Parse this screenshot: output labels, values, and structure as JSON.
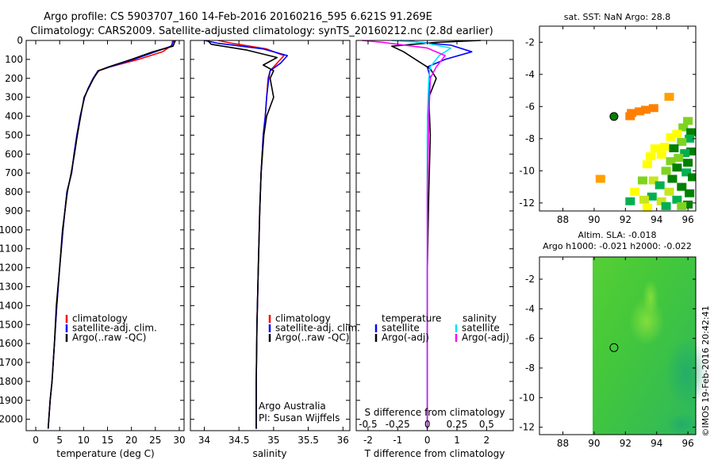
{
  "header": {
    "title_line1": "Argo profile: CS 5903707_160 14-Feb-2016 20160216_595 6.621S 91.269E",
    "title_line2": "Climatology: CARS2009. Satellite-adjusted climatology: synTS_20160212.nc (2.8d earlier)"
  },
  "footer": {
    "stamp": "©IMOS 19-Feb-2016 20:42:41"
  },
  "colors": {
    "climatology": "#ff0000",
    "satellite_adj": "#0000ff",
    "argo": "#000000",
    "satellite_salinity": "#00e5ff",
    "argo_adj_salinity": "#ff00ff"
  },
  "chart_data": [
    {
      "type": "line",
      "id": "temperature",
      "xlabel": "temperature (deg C)",
      "xlim": [
        -2,
        31
      ],
      "ylim": [
        2060,
        0
      ],
      "xticks": [
        0,
        5,
        10,
        15,
        20,
        25,
        30
      ],
      "yticks": [
        0,
        100,
        200,
        300,
        400,
        500,
        600,
        700,
        800,
        900,
        1000,
        1100,
        1200,
        1300,
        1400,
        1500,
        1600,
        1700,
        1800,
        1900,
        2000
      ],
      "legend": [
        "climatology",
        "satellite-adj. clim.",
        "Argo(..raw -QC)"
      ],
      "legend_position": "lower-right",
      "series": [
        {
          "name": "climatology",
          "color": "#ff0000",
          "x": [
            28.6,
            28.5,
            26.5,
            21.5,
            15.5,
            13.2,
            12.0,
            11.0,
            10.2,
            9.3,
            8.6,
            8.0,
            7.5,
            6.5,
            5.7,
            5.0,
            4.4,
            3.9,
            3.4,
            3.0,
            2.6
          ],
          "y": [
            0,
            25,
            60,
            100,
            140,
            160,
            200,
            250,
            300,
            400,
            500,
            600,
            700,
            800,
            1000,
            1200,
            1400,
            1600,
            1800,
            1900,
            2050
          ]
        },
        {
          "name": "satellite-adj. clim.",
          "color": "#0000ff",
          "x": [
            28.9,
            28.3,
            25.0,
            20.5,
            15.5,
            13.0,
            12.0,
            11.0,
            10.2,
            9.3,
            8.6,
            8.0,
            7.5,
            6.5,
            5.7,
            5.0,
            4.4,
            3.9,
            3.4,
            3.0,
            2.6
          ],
          "y": [
            0,
            30,
            60,
            100,
            140,
            160,
            200,
            250,
            300,
            400,
            500,
            600,
            700,
            800,
            1000,
            1200,
            1400,
            1600,
            1800,
            1900,
            2050
          ]
        },
        {
          "name": "Argo(..raw -QC)",
          "color": "#000000",
          "x": [
            29.2,
            28.7,
            24.5,
            20.0,
            15.2,
            13.1,
            12.1,
            11.1,
            10.1,
            9.4,
            8.7,
            8.1,
            7.4,
            6.6,
            5.6,
            5.0,
            4.3,
            3.9,
            3.4,
            3.0,
            2.6
          ],
          "y": [
            0,
            30,
            60,
            100,
            140,
            160,
            200,
            250,
            300,
            400,
            500,
            600,
            700,
            800,
            1000,
            1200,
            1400,
            1600,
            1800,
            1900,
            2050
          ]
        }
      ]
    },
    {
      "type": "line",
      "id": "salinity",
      "xlabel": "salinity",
      "xlim": [
        33.8,
        36.1
      ],
      "ylim": [
        2060,
        0
      ],
      "xticks": [
        34,
        34.5,
        35,
        35.5,
        36
      ],
      "legend": [
        "climatology",
        "satellite-adj. clim.",
        "Argo(..raw -QC)"
      ],
      "legend_position": "lower-right",
      "annotation": [
        "Argo Australia",
        "PI: Susan Wijffels"
      ],
      "series": [
        {
          "name": "climatology",
          "color": "#ff0000",
          "x": [
            34.2,
            34.4,
            34.9,
            35.15,
            35.05,
            34.95,
            34.92,
            34.9,
            34.88,
            34.85,
            34.82,
            34.8,
            34.78,
            34.76,
            34.75,
            34.75
          ],
          "y": [
            0,
            15,
            45,
            80,
            120,
            160,
            200,
            300,
            400,
            500,
            700,
            900,
            1200,
            1500,
            1800,
            2050
          ]
        },
        {
          "name": "satellite-adj. clim.",
          "color": "#0000ff",
          "x": [
            34.0,
            34.2,
            34.85,
            35.2,
            35.1,
            34.95,
            34.93,
            34.9,
            34.88,
            34.85,
            34.82,
            34.8,
            34.78,
            34.76,
            34.75,
            34.75
          ],
          "y": [
            0,
            15,
            45,
            80,
            120,
            160,
            200,
            300,
            400,
            500,
            700,
            900,
            1200,
            1500,
            1800,
            2050
          ]
        },
        {
          "name": "Argo(..raw -QC)",
          "color": "#000000",
          "x": [
            34.05,
            34.1,
            34.6,
            35.05,
            34.85,
            35.0,
            34.95,
            35.0,
            34.9,
            34.86,
            34.82,
            34.8,
            34.78,
            34.76,
            34.75,
            34.75
          ],
          "y": [
            0,
            20,
            50,
            90,
            130,
            160,
            200,
            300,
            400,
            500,
            700,
            900,
            1200,
            1500,
            1800,
            2050
          ]
        }
      ]
    },
    {
      "type": "line",
      "id": "difference",
      "xlabel": "T difference from climatology",
      "xlabel_top": "S difference from climatology",
      "xlim": [
        -2.4,
        2.9
      ],
      "ylim": [
        2060,
        0
      ],
      "xticks": [
        -2,
        -1,
        0,
        1,
        2
      ],
      "xticks_top_labels": [
        "-0.5",
        "-0.25",
        "0",
        "0.25",
        "0.5"
      ],
      "xticks_top_pos": [
        -2,
        -1,
        0,
        1,
        2
      ],
      "legend_left_title": "temperature",
      "legend_right_title": "salinity",
      "legend_left": [
        "satellite",
        "Argo(-adj)"
      ],
      "legend_right": [
        "satellite",
        "Argo(-adj)"
      ],
      "legend_position": "lower-center",
      "series": [
        {
          "name": "temperature satellite",
          "color": "#0000ff",
          "x": [
            -0.9,
            -0.2,
            0.8,
            1.5,
            0.6,
            0.0,
            0.1,
            0.05,
            0.0,
            0.0,
            0.0,
            0.0,
            0.0,
            0.0
          ],
          "y": [
            0,
            10,
            25,
            60,
            100,
            140,
            200,
            300,
            500,
            800,
            1200,
            1500,
            1800,
            2050
          ]
        },
        {
          "name": "temperature Argo(-adj)",
          "color": "#000000",
          "x": [
            1.8,
            0.3,
            -1.2,
            -0.8,
            -0.4,
            0.1,
            0.3,
            0.05,
            0.1,
            0.05,
            0.0,
            0.0,
            0.0,
            0.0
          ],
          "y": [
            0,
            10,
            30,
            60,
            100,
            150,
            200,
            300,
            500,
            800,
            1200,
            1500,
            1800,
            2050
          ]
        },
        {
          "name": "salinity satellite",
          "color": "#00e5ff",
          "x": [
            -1.2,
            -0.2,
            0.8,
            0.4,
            0.1,
            0.05,
            0.0,
            0.0,
            0.0,
            0.0,
            0.0
          ],
          "y": [
            0,
            10,
            40,
            80,
            140,
            200,
            400,
            800,
            1200,
            1600,
            2050
          ]
        },
        {
          "name": "salinity Argo(-adj)",
          "color": "#ff00ff",
          "x": [
            -2.2,
            -1.5,
            0.0,
            0.6,
            0.3,
            0.1,
            0.05,
            0.0,
            0.0,
            0.0,
            0.0
          ],
          "y": [
            0,
            10,
            40,
            80,
            140,
            200,
            400,
            800,
            1200,
            1600,
            2050
          ]
        }
      ]
    },
    {
      "type": "heatmap",
      "id": "sst_map",
      "title": "sat. SST: NaN Argo: 28.8",
      "xlim": [
        86.5,
        96.5
      ],
      "ylim": [
        -12.5,
        -1
      ],
      "xticks": [
        88,
        90,
        92,
        94,
        96
      ],
      "yticks": [
        -2,
        -4,
        -6,
        -8,
        -10,
        -12
      ],
      "argo_position": [
        91.269,
        -6.621
      ],
      "colors": [
        "#008000",
        "#00b050",
        "#7ed321",
        "#c8e61e",
        "#ffff00",
        "#ffa000",
        "#ff8000"
      ],
      "cells": [
        [
          94.8,
          -5.4,
          5
        ],
        [
          93.8,
          -6.1,
          6
        ],
        [
          93.3,
          -6.2,
          6
        ],
        [
          92.9,
          -6.3,
          6
        ],
        [
          92.4,
          -6.4,
          6
        ],
        [
          92.3,
          -6.6,
          6
        ],
        [
          96.0,
          -6.9,
          2
        ],
        [
          95.7,
          -7.3,
          2
        ],
        [
          96.2,
          -7.6,
          0
        ],
        [
          95.3,
          -7.7,
          4
        ],
        [
          94.9,
          -7.9,
          4
        ],
        [
          96.1,
          -8.0,
          1
        ],
        [
          95.6,
          -8.2,
          2
        ],
        [
          94.5,
          -8.5,
          4
        ],
        [
          93.9,
          -8.6,
          4
        ],
        [
          95.1,
          -8.6,
          0
        ],
        [
          96.2,
          -8.8,
          0
        ],
        [
          95.8,
          -8.9,
          1
        ],
        [
          94.3,
          -9.0,
          4
        ],
        [
          93.6,
          -9.1,
          4
        ],
        [
          95.4,
          -9.2,
          2
        ],
        [
          94.9,
          -9.4,
          2
        ],
        [
          93.4,
          -9.6,
          4
        ],
        [
          96.0,
          -9.5,
          0
        ],
        [
          95.3,
          -9.8,
          0
        ],
        [
          94.6,
          -10.0,
          2
        ],
        [
          95.9,
          -10.1,
          1
        ],
        [
          96.3,
          -10.4,
          0
        ],
        [
          95.0,
          -10.5,
          0
        ],
        [
          93.8,
          -10.6,
          3
        ],
        [
          90.4,
          -10.5,
          5
        ],
        [
          94.2,
          -10.9,
          1
        ],
        [
          95.6,
          -11.0,
          0
        ],
        [
          93.1,
          -10.6,
          2
        ],
        [
          94.8,
          -11.3,
          3
        ],
        [
          96.1,
          -11.4,
          0
        ],
        [
          93.7,
          -11.6,
          1
        ],
        [
          92.6,
          -11.3,
          4
        ],
        [
          95.3,
          -11.8,
          1
        ],
        [
          94.3,
          -11.9,
          3
        ],
        [
          93.2,
          -11.8,
          3
        ],
        [
          96.0,
          -12.1,
          0
        ],
        [
          92.3,
          -11.9,
          1
        ],
        [
          95.6,
          -12.2,
          2
        ],
        [
          94.6,
          -12.2,
          1
        ],
        [
          93.4,
          -12.3,
          4
        ]
      ]
    },
    {
      "type": "heatmap",
      "id": "sla_map",
      "title_line1": "Altim. SLA: -0.018",
      "title_line2": "Argo h1000: -0.021 h2000: -0.022",
      "xlim": [
        86.5,
        96.5
      ],
      "ylim": [
        -12.5,
        -0.5
      ],
      "xticks": [
        88,
        90,
        92,
        94,
        96
      ],
      "yticks": [
        -2,
        -4,
        -6,
        -8,
        -10,
        -12
      ],
      "data_extent_x": [
        89.9,
        96.5
      ],
      "argo_position": [
        91.269,
        -6.621
      ],
      "colors": [
        "#38c838",
        "#6fde3a",
        "#2fbf5f"
      ]
    }
  ]
}
